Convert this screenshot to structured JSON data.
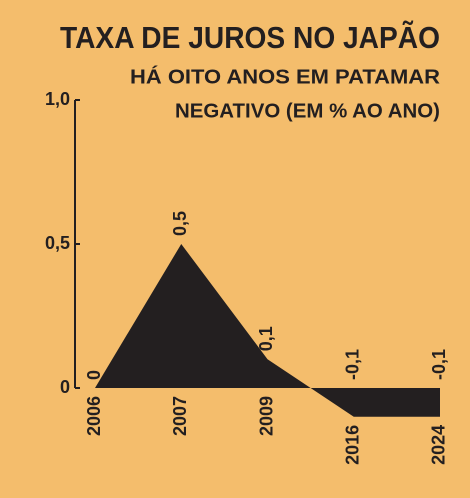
{
  "chart_data": {
    "type": "area",
    "title": "TAXA DE JUROS NO JAPÃO",
    "subtitle": [
      "HÁ OITO ANOS EM PATAMAR",
      "NEGATIVO (EM % AO ANO)"
    ],
    "categories": [
      "2006",
      "2007",
      "2009",
      "2016",
      "2024"
    ],
    "values": [
      0,
      0.5,
      0.1,
      -0.1,
      -0.1
    ],
    "value_labels": [
      "0",
      "0,5",
      "0,1",
      "-0,1",
      "-0,1"
    ],
    "color": "#231f20",
    "ylim": [
      0,
      1
    ],
    "yticks": [
      {
        "value": 0,
        "label": "0"
      },
      {
        "value": 0.5,
        "label": "0,5"
      },
      {
        "value": 1,
        "label": "1,0"
      }
    ],
    "grid": false
  }
}
